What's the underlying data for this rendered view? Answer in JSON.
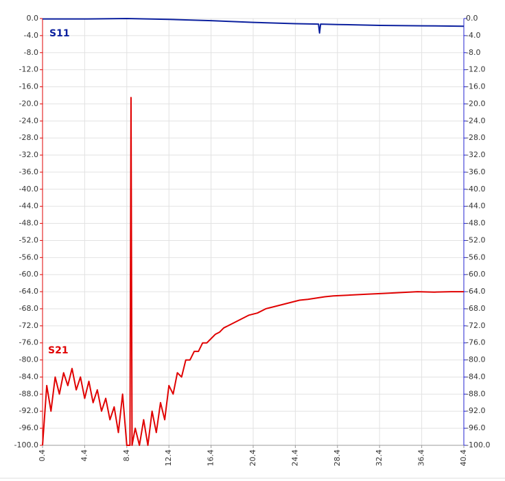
{
  "chart_data": {
    "type": "line",
    "xlim": [
      0.4,
      40.4
    ],
    "xticks": [
      0.4,
      4.4,
      8.4,
      12.4,
      16.4,
      20.4,
      24.4,
      28.4,
      32.4,
      36.4,
      40.4
    ],
    "ylim": [
      -100,
      0
    ],
    "yticks": [
      {
        "value": 0,
        "label": "0.0"
      },
      {
        "value": -4,
        "label": "-4.0"
      },
      {
        "value": -8,
        "label": "-8.0"
      },
      {
        "value": -12,
        "label": "-12.0"
      },
      {
        "value": -16,
        "label": "-16.0"
      },
      {
        "value": -20,
        "label": "-20.0"
      },
      {
        "value": -24,
        "label": "-24.0"
      },
      {
        "value": -28,
        "label": "-28.0"
      },
      {
        "value": -32,
        "label": "-32.0"
      },
      {
        "value": -36,
        "label": "-36.0"
      },
      {
        "value": -40,
        "label": "-40.0"
      },
      {
        "value": -44,
        "label": "-44.0"
      },
      {
        "value": -48,
        "label": "-48.0"
      },
      {
        "value": -52,
        "label": "-52.0"
      },
      {
        "value": -56,
        "label": "-56.0"
      },
      {
        "value": -60,
        "label": "-60.0"
      },
      {
        "value": -64,
        "label": "-64.0"
      },
      {
        "value": -68,
        "label": "-68.0"
      },
      {
        "value": -72,
        "label": "-72.0"
      },
      {
        "value": -76,
        "label": "-76.0"
      },
      {
        "value": -80,
        "label": "-80.0"
      },
      {
        "value": -84,
        "label": "-84.0"
      },
      {
        "value": -88,
        "label": "-88.0"
      },
      {
        "value": -92,
        "label": "-92.0"
      },
      {
        "value": -96,
        "label": "-96.0"
      },
      {
        "value": -100,
        "label": "-100.0"
      }
    ],
    "y2lim": [
      -100,
      0
    ],
    "y2ticks": [
      {
        "value": 0,
        "label": "0.0"
      },
      {
        "value": -4,
        "label": "-4.0"
      },
      {
        "value": -8,
        "label": "-8.0"
      },
      {
        "value": -12,
        "label": "-12.0"
      },
      {
        "value": -16,
        "label": "-16.0"
      },
      {
        "value": -20,
        "label": "-20.0"
      },
      {
        "value": -24,
        "label": "-24.0"
      },
      {
        "value": -28,
        "label": "-28.0"
      },
      {
        "value": -32,
        "label": "-32.0"
      },
      {
        "value": -36,
        "label": "-36.0"
      },
      {
        "value": -40,
        "label": "-40.0"
      },
      {
        "value": -44,
        "label": "-44.0"
      },
      {
        "value": -48,
        "label": "-48.0"
      },
      {
        "value": -52,
        "label": "-52.0"
      },
      {
        "value": -56,
        "label": "-56.0"
      },
      {
        "value": -60,
        "label": "-60.0"
      },
      {
        "value": -64,
        "label": "-64.0"
      },
      {
        "value": -68,
        "label": "-68.0"
      },
      {
        "value": -72,
        "label": "-72.0"
      },
      {
        "value": -76,
        "label": "-76.0"
      },
      {
        "value": -80,
        "label": "-80.0"
      },
      {
        "value": -84,
        "label": "-84.0"
      },
      {
        "value": -88,
        "label": "-88.0"
      },
      {
        "value": -92,
        "label": "-92.0"
      },
      {
        "value": -96,
        "label": "-96.0"
      },
      {
        "value": -100,
        "label": "-100.0"
      }
    ],
    "grid": true,
    "ycolor": "#e00000",
    "y2color": "#2020d0",
    "series": [
      {
        "name": "S11",
        "color": "#0a1f9e",
        "axis": "y2",
        "x": [
          0.4,
          4.4,
          8.4,
          12.4,
          16.4,
          20.4,
          24.4,
          26.6,
          26.7,
          26.8,
          28.4,
          32.4,
          36.4,
          40.4
        ],
        "values": [
          -0.1,
          -0.1,
          0,
          -0.2,
          -0.5,
          -0.9,
          -1.2,
          -1.3,
          -3.4,
          -1.3,
          -1.4,
          -1.6,
          -1.7,
          -1.8
        ]
      },
      {
        "name": "S21",
        "color": "#e00000",
        "x": [
          0.4,
          0.8,
          1.2,
          1.6,
          2.0,
          2.4,
          2.8,
          3.2,
          3.6,
          4.0,
          4.4,
          4.8,
          5.2,
          5.6,
          6.0,
          6.4,
          6.8,
          7.2,
          7.6,
          8.0,
          8.4,
          8.7,
          8.8,
          8.9,
          9.2,
          9.6,
          10.0,
          10.4,
          10.8,
          11.2,
          11.6,
          12.0,
          12.4,
          12.8,
          13.2,
          13.6,
          14.0,
          14.4,
          14.8,
          15.2,
          15.6,
          16.0,
          16.4,
          16.8,
          17.2,
          17.6,
          18.0,
          18.4,
          18.8,
          19.2,
          19.6,
          20.0,
          20.8,
          21.6,
          22.4,
          23.2,
          24.0,
          24.8,
          25.6,
          26.4,
          27.2,
          28.0,
          29.6,
          31.2,
          32.8,
          34.4,
          36.0,
          37.6,
          39.2,
          40.4
        ],
        "values": [
          -100,
          -86,
          -92,
          -84,
          -88,
          -83,
          -86,
          -82,
          -87,
          -84,
          -89,
          -85,
          -90,
          -87,
          -92,
          -89,
          -94,
          -91,
          -97,
          -88,
          -100,
          -100,
          -18.5,
          -100,
          -96,
          -100,
          -94,
          -100,
          -92,
          -97,
          -90,
          -94,
          -86,
          -88,
          -83,
          -84,
          -80,
          -80,
          -78,
          -78,
          -76,
          -76,
          -75,
          -74,
          -73.5,
          -72.5,
          -72,
          -71.5,
          -71,
          -70.5,
          -70,
          -69.5,
          -69,
          -68,
          -67.5,
          -67,
          -66.5,
          -66,
          -65.8,
          -65.5,
          -65.2,
          -65,
          -64.8,
          -64.6,
          -64.4,
          -64.2,
          -64,
          -64.1,
          -64,
          -64
        ]
      }
    ]
  }
}
